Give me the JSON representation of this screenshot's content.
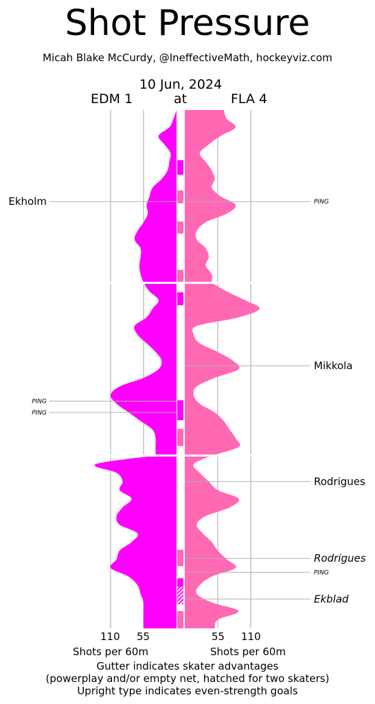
{
  "title": "Shot Pressure",
  "subtitle": "Micah Blake McCurdy, @IneffectiveMath, hockeyviz.com",
  "date": "10 Jun, 2024",
  "away_team": "EDM 1",
  "at_word": "at",
  "home_team": "FLA 4",
  "colors": {
    "away": "#ff00ff",
    "home": "#ff69b4",
    "grid": "#b0b0b0"
  },
  "chart_data": {
    "type": "area",
    "orientation": "vertical mirrored",
    "periods": 3,
    "period_minutes": 20,
    "x_ticks_left": [
      "110",
      "55"
    ],
    "x_ticks_right": [
      "55",
      "110"
    ],
    "xlabel_left": "Shots per 60m",
    "xlabel_right": "Shots per 60m",
    "series": [
      {
        "name": "EDM",
        "side": "left",
        "minutes": [
          0,
          1,
          2,
          3,
          4,
          5,
          6,
          7,
          8,
          9,
          10,
          11,
          12,
          13,
          14,
          15,
          16,
          17,
          18,
          19,
          20,
          21,
          22,
          23,
          24,
          25,
          26,
          27,
          28,
          29,
          30,
          31,
          32,
          33,
          34,
          35,
          36,
          37,
          38,
          39,
          40,
          41,
          42,
          43,
          44,
          45,
          46,
          47,
          48,
          49,
          50,
          51,
          52,
          53,
          54,
          55,
          56,
          57,
          58,
          59,
          60
        ],
        "values": [
          0,
          5,
          12,
          30,
          20,
          10,
          12,
          15,
          25,
          40,
          45,
          50,
          48,
          55,
          65,
          70,
          60,
          60,
          62,
          60,
          55,
          45,
          30,
          40,
          50,
          70,
          65,
          50,
          35,
          25,
          30,
          55,
          95,
          110,
          100,
          80,
          60,
          40,
          35,
          35,
          35,
          135,
          100,
          90,
          95,
          75,
          90,
          100,
          95,
          65,
          75,
          95,
          100,
          110,
          80,
          65,
          60,
          55,
          55,
          55,
          55
        ]
      },
      {
        "name": "FLA",
        "side": "right",
        "minutes": [
          0,
          1,
          2,
          3,
          4,
          5,
          6,
          7,
          8,
          9,
          10,
          11,
          12,
          13,
          14,
          15,
          16,
          17,
          18,
          19,
          20,
          21,
          22,
          23,
          24,
          25,
          26,
          27,
          28,
          29,
          30,
          31,
          32,
          33,
          34,
          35,
          36,
          37,
          38,
          39,
          40,
          41,
          42,
          43,
          44,
          45,
          46,
          47,
          48,
          49,
          50,
          51,
          52,
          53,
          54,
          55,
          56,
          57,
          58,
          59,
          60
        ],
        "values": [
          65,
          70,
          85,
          60,
          40,
          25,
          35,
          45,
          50,
          45,
          60,
          85,
          70,
          35,
          20,
          20,
          35,
          40,
          35,
          45,
          45,
          70,
          100,
          125,
          90,
          20,
          15,
          25,
          55,
          80,
          90,
          50,
          20,
          15,
          25,
          50,
          65,
          75,
          85,
          90,
          45,
          15,
          25,
          40,
          55,
          90,
          75,
          35,
          20,
          30,
          45,
          55,
          70,
          85,
          45,
          25,
          20,
          45,
          90,
          55,
          50
        ]
      }
    ],
    "goals": [
      {
        "side": "left",
        "player": "Ekholm",
        "minute": 10.6,
        "even_strength": true
      },
      {
        "side": "right",
        "player": "PING",
        "minute": 10.6,
        "even_strength": true
      },
      {
        "side": "right",
        "player": "Mikkola",
        "minute": 29.6,
        "even_strength": true
      },
      {
        "side": "left",
        "player": "PING",
        "minute": 33.7,
        "even_strength": true
      },
      {
        "side": "left",
        "player": "PING",
        "minute": 35.0,
        "even_strength": true
      },
      {
        "side": "right",
        "player": "Rodrigues",
        "minute": 43.0,
        "even_strength": true
      },
      {
        "side": "right",
        "player": "Rodrigues",
        "minute": 51.9,
        "even_strength": false
      },
      {
        "side": "right",
        "player": "PING",
        "minute": 53.5,
        "even_strength": true
      },
      {
        "side": "right",
        "player": "Ekblad",
        "minute": 56.6,
        "even_strength": false
      }
    ],
    "gutter_advantages": [
      {
        "team": "EDM",
        "start": 5.8,
        "end": 7.5,
        "hatched": false
      },
      {
        "team": "FLA",
        "start": 9.3,
        "end": 10.8,
        "hatched": false
      },
      {
        "team": "FLA",
        "start": 12.9,
        "end": 14.3,
        "hatched": false
      },
      {
        "team": "FLA",
        "start": 18.5,
        "end": 20.0,
        "hatched": false
      },
      {
        "team": "EDM",
        "start": 21.1,
        "end": 22.6,
        "hatched": false
      },
      {
        "team": "EDM",
        "start": 33.6,
        "end": 35.9,
        "hatched": false
      },
      {
        "team": "FLA",
        "start": 36.9,
        "end": 38.9,
        "hatched": false
      },
      {
        "team": "FLA",
        "start": 50.9,
        "end": 52.8,
        "hatched": false
      },
      {
        "team": "EDM",
        "start": 54.2,
        "end": 55.2,
        "hatched": false
      },
      {
        "team": "EDM",
        "start": 55.2,
        "end": 57.2,
        "hatched": true
      },
      {
        "team": "FLA",
        "start": 58.0,
        "end": 60.0,
        "hatched": false
      }
    ]
  },
  "footer": {
    "line1": "Gutter indicates skater advantages",
    "line2": "(powerplay and/or empty net, hatched for two skaters)",
    "line3": "Upright type indicates even-strength goals"
  }
}
